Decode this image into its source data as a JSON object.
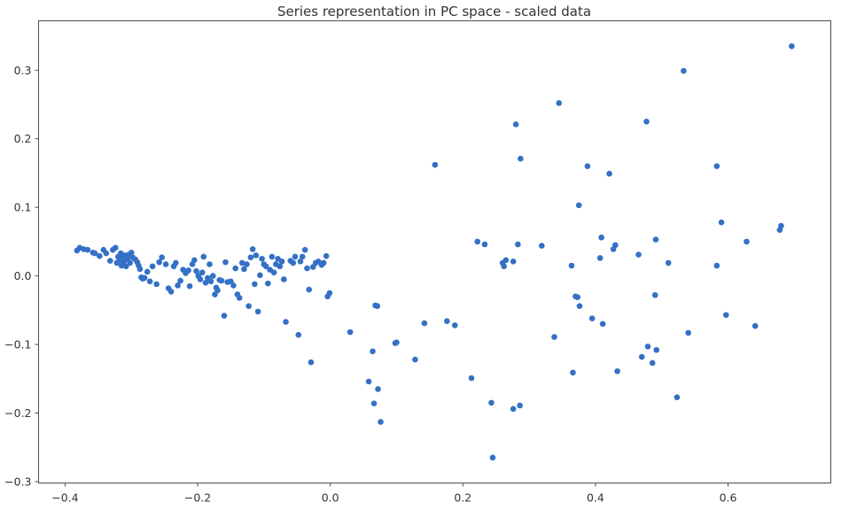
{
  "chart_data": {
    "type": "scatter",
    "title": "Series representation in PC space - scaled data",
    "xlabel": "",
    "ylabel": "",
    "xlim": [
      -0.44,
      0.755
    ],
    "ylim": [
      -0.302,
      0.372
    ],
    "x_ticks": [
      -0.4,
      -0.2,
      0.0,
      0.2,
      0.4,
      0.6
    ],
    "x_tick_labels": [
      "−0.4",
      "−0.2",
      "0.0",
      "0.2",
      "0.4",
      "0.6"
    ],
    "y_ticks": [
      -0.3,
      -0.2,
      -0.1,
      0.0,
      0.1,
      0.2,
      0.3
    ],
    "y_tick_labels": [
      "−0.3",
      "−0.2",
      "−0.1",
      "0.0",
      "0.1",
      "0.2",
      "0.3"
    ],
    "grid": false,
    "marker_color": "#3470c6",
    "series": [
      {
        "points": [
          [
            -0.382,
            0.037
          ],
          [
            -0.378,
            0.041
          ],
          [
            -0.372,
            0.039
          ],
          [
            -0.366,
            0.038
          ],
          [
            -0.358,
            0.034
          ],
          [
            -0.355,
            0.033
          ],
          [
            -0.348,
            0.029
          ],
          [
            -0.342,
            0.038
          ],
          [
            -0.338,
            0.033
          ],
          [
            -0.332,
            0.022
          ],
          [
            -0.328,
            0.038
          ],
          [
            -0.324,
            0.041
          ],
          [
            -0.322,
            0.019
          ],
          [
            -0.32,
            0.028
          ],
          [
            -0.318,
            0.023
          ],
          [
            -0.316,
            0.033
          ],
          [
            -0.315,
            0.015
          ],
          [
            -0.313,
            0.026
          ],
          [
            -0.312,
            0.019
          ],
          [
            -0.31,
            0.03
          ],
          [
            -0.308,
            0.014
          ],
          [
            -0.306,
            0.024
          ],
          [
            -0.304,
            0.031
          ],
          [
            -0.302,
            0.019
          ],
          [
            -0.3,
            0.034
          ],
          [
            -0.298,
            0.027
          ],
          [
            -0.294,
            0.024
          ],
          [
            -0.291,
            0.02
          ],
          [
            -0.289,
            0.015
          ],
          [
            -0.287,
            0.01
          ],
          [
            -0.285,
            -0.002
          ],
          [
            -0.283,
            -0.004
          ],
          [
            -0.28,
            -0.003
          ],
          [
            -0.276,
            0.006
          ],
          [
            -0.272,
            -0.008
          ],
          [
            -0.268,
            0.014
          ],
          [
            -0.262,
            -0.012
          ],
          [
            -0.258,
            0.02
          ],
          [
            -0.254,
            0.027
          ],
          [
            -0.248,
            0.017
          ],
          [
            -0.244,
            -0.018
          ],
          [
            -0.24,
            -0.023
          ],
          [
            -0.236,
            0.014
          ],
          [
            -0.233,
            0.019
          ],
          [
            -0.23,
            -0.014
          ],
          [
            -0.226,
            -0.007
          ],
          [
            -0.222,
            0.009
          ],
          [
            -0.218,
            0.004
          ],
          [
            -0.214,
            0.008
          ],
          [
            -0.212,
            -0.015
          ],
          [
            -0.208,
            0.017
          ],
          [
            -0.205,
            0.023
          ],
          [
            -0.202,
            0.007
          ],
          [
            -0.199,
            0.0
          ],
          [
            -0.196,
            -0.005
          ],
          [
            -0.193,
            0.005
          ],
          [
            -0.191,
            0.028
          ],
          [
            -0.188,
            -0.01
          ],
          [
            -0.185,
            -0.003
          ],
          [
            -0.182,
            0.017
          ],
          [
            -0.18,
            -0.008
          ],
          [
            -0.177,
            0.0
          ],
          [
            -0.174,
            -0.027
          ],
          [
            -0.172,
            -0.017
          ],
          [
            -0.17,
            -0.021
          ],
          [
            -0.167,
            -0.006
          ],
          [
            -0.164,
            -0.007
          ],
          [
            -0.16,
            -0.058
          ],
          [
            -0.158,
            0.02
          ],
          [
            -0.155,
            -0.009
          ],
          [
            -0.15,
            -0.008
          ],
          [
            -0.146,
            -0.014
          ],
          [
            -0.143,
            0.011
          ],
          [
            -0.14,
            -0.027
          ],
          [
            -0.137,
            -0.032
          ],
          [
            -0.133,
            0.019
          ],
          [
            -0.13,
            0.01
          ],
          [
            -0.126,
            0.017
          ],
          [
            -0.123,
            -0.044
          ],
          [
            -0.12,
            0.027
          ],
          [
            -0.117,
            0.039
          ],
          [
            -0.114,
            -0.012
          ],
          [
            -0.112,
            0.03
          ],
          [
            -0.109,
            -0.052
          ],
          [
            -0.106,
            0.001
          ],
          [
            -0.103,
            0.025
          ],
          [
            -0.1,
            0.017
          ],
          [
            -0.097,
            0.014
          ],
          [
            -0.094,
            -0.011
          ],
          [
            -0.091,
            0.009
          ],
          [
            -0.088,
            0.028
          ],
          [
            -0.085,
            0.005
          ],
          [
            -0.082,
            0.017
          ],
          [
            -0.079,
            0.025
          ],
          [
            -0.076,
            0.014
          ],
          [
            -0.073,
            0.021
          ],
          [
            -0.07,
            -0.005
          ],
          [
            -0.067,
            -0.067
          ],
          [
            -0.06,
            0.022
          ],
          [
            -0.056,
            0.019
          ],
          [
            -0.053,
            0.028
          ],
          [
            -0.048,
            -0.086
          ],
          [
            -0.045,
            0.021
          ],
          [
            -0.042,
            0.028
          ],
          [
            -0.038,
            0.038
          ],
          [
            -0.035,
            0.011
          ],
          [
            -0.032,
            -0.02
          ],
          [
            -0.029,
            -0.126
          ],
          [
            -0.026,
            0.013
          ],
          [
            -0.022,
            0.019
          ],
          [
            -0.018,
            0.021
          ],
          [
            -0.013,
            0.016
          ],
          [
            -0.01,
            0.019
          ],
          [
            -0.006,
            0.029
          ],
          [
            -0.004,
            -0.03
          ],
          [
            -0.001,
            -0.025
          ],
          [
            0.03,
            -0.082
          ],
          [
            0.058,
            -0.154
          ],
          [
            0.064,
            -0.11
          ],
          [
            0.066,
            -0.186
          ],
          [
            0.068,
            -0.043
          ],
          [
            0.071,
            -0.044
          ],
          [
            0.072,
            -0.165
          ],
          [
            0.076,
            -0.213
          ],
          [
            0.098,
            -0.098
          ],
          [
            0.1,
            -0.097
          ],
          [
            0.128,
            -0.122
          ],
          [
            0.142,
            -0.069
          ],
          [
            0.158,
            0.162
          ],
          [
            0.176,
            -0.066
          ],
          [
            0.188,
            -0.072
          ],
          [
            0.213,
            -0.149
          ],
          [
            0.222,
            0.05
          ],
          [
            0.233,
            0.046
          ],
          [
            0.243,
            -0.185
          ],
          [
            0.245,
            -0.265
          ],
          [
            0.26,
            0.019
          ],
          [
            0.262,
            0.014
          ],
          [
            0.265,
            0.023
          ],
          [
            0.276,
            0.021
          ],
          [
            0.276,
            -0.194
          ],
          [
            0.28,
            0.221
          ],
          [
            0.283,
            0.046
          ],
          [
            0.286,
            -0.189
          ],
          [
            0.287,
            0.171
          ],
          [
            0.319,
            0.044
          ],
          [
            0.338,
            -0.089
          ],
          [
            0.345,
            0.252
          ],
          [
            0.364,
            0.015
          ],
          [
            0.366,
            -0.141
          ],
          [
            0.37,
            -0.03
          ],
          [
            0.373,
            -0.031
          ],
          [
            0.375,
            0.103
          ],
          [
            0.376,
            -0.044
          ],
          [
            0.388,
            0.16
          ],
          [
            0.395,
            -0.062
          ],
          [
            0.407,
            0.026
          ],
          [
            0.409,
            0.056
          ],
          [
            0.411,
            -0.07
          ],
          [
            0.421,
            0.149
          ],
          [
            0.427,
            0.039
          ],
          [
            0.43,
            0.045
          ],
          [
            0.433,
            -0.139
          ],
          [
            0.465,
            0.031
          ],
          [
            0.47,
            -0.118
          ],
          [
            0.477,
            0.225
          ],
          [
            0.479,
            -0.103
          ],
          [
            0.486,
            -0.127
          ],
          [
            0.49,
            -0.028
          ],
          [
            0.491,
            0.053
          ],
          [
            0.492,
            -0.108
          ],
          [
            0.51,
            0.019
          ],
          [
            0.523,
            -0.177
          ],
          [
            0.533,
            0.299
          ],
          [
            0.54,
            -0.083
          ],
          [
            0.583,
            0.16
          ],
          [
            0.583,
            0.015
          ],
          [
            0.59,
            0.078
          ],
          [
            0.597,
            -0.057
          ],
          [
            0.628,
            0.05
          ],
          [
            0.641,
            -0.073
          ],
          [
            0.678,
            0.067
          ],
          [
            0.68,
            0.073
          ],
          [
            0.696,
            0.335
          ]
        ]
      }
    ]
  }
}
